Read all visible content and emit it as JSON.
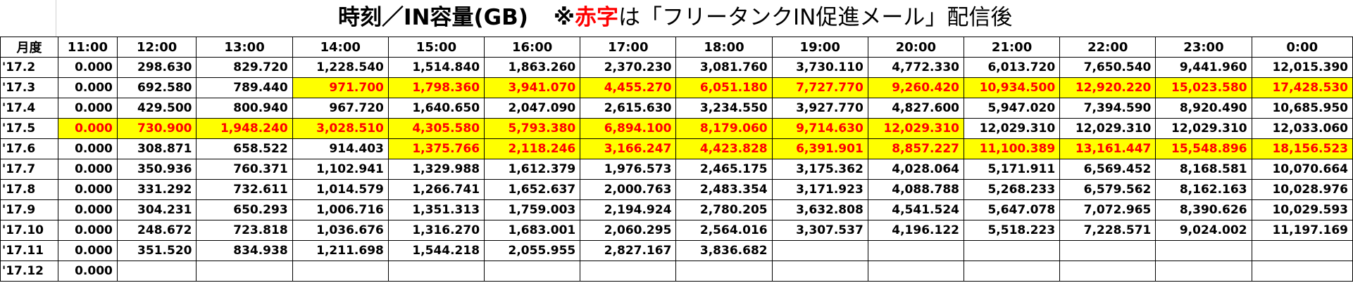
{
  "title": {
    "prefix": "時刻／IN容量(GB)",
    "mark": "※",
    "red": "赤字",
    "suffix": "は「フリータンクIN促進メール」配信後"
  },
  "colors": {
    "highlight_bg": "#ffff00",
    "highlight_text": "#ff0000"
  },
  "header": [
    "月度",
    "11:00",
    "12:00",
    "13:00",
    "14:00",
    "15:00",
    "16:00",
    "17:00",
    "18:00",
    "19:00",
    "20:00",
    "21:00",
    "22:00",
    "23:00",
    "0:00"
  ],
  "rows": [
    {
      "month": "'17.2",
      "values": [
        "0.000",
        "298.630",
        "829.720",
        "1,228.540",
        "1,514.840",
        "1,863.260",
        "2,370.230",
        "3,081.760",
        "3,730.110",
        "4,772.330",
        "6,013.720",
        "7,650.540",
        "9,441.960",
        "12,015.390"
      ],
      "hl_from": -1,
      "hl_to": -1
    },
    {
      "month": "'17.3",
      "values": [
        "0.000",
        "692.580",
        "789.440",
        "971.700",
        "1,798.360",
        "3,941.070",
        "4,455.270",
        "6,051.180",
        "7,727.770",
        "9,260.420",
        "10,934.500",
        "12,920.220",
        "15,023.580",
        "17,428.530"
      ],
      "hl_from": 3,
      "hl_to": 13
    },
    {
      "month": "'17.4",
      "values": [
        "0.000",
        "429.500",
        "800.940",
        "967.720",
        "1,640.650",
        "2,047.090",
        "2,615.630",
        "3,234.550",
        "3,927.770",
        "4,827.600",
        "5,947.020",
        "7,394.590",
        "8,920.490",
        "10,685.950"
      ],
      "hl_from": -1,
      "hl_to": -1
    },
    {
      "month": "'17.5",
      "values": [
        "0.000",
        "730.900",
        "1,948.240",
        "3,028.510",
        "4,305.580",
        "5,793.380",
        "6,894.100",
        "8,179.060",
        "9,714.630",
        "12,029.310",
        "12,029.310",
        "12,029.310",
        "12,029.310",
        "12,033.060"
      ],
      "hl_from": 0,
      "hl_to": 9
    },
    {
      "month": "'17.6",
      "values": [
        "0.000",
        "308.871",
        "658.522",
        "914.403",
        "1,375.766",
        "2,118.246",
        "3,166.247",
        "4,423.828",
        "6,391.901",
        "8,857.227",
        "11,100.389",
        "13,161.447",
        "15,548.896",
        "18,156.523"
      ],
      "hl_from": 4,
      "hl_to": 13
    },
    {
      "month": "'17.7",
      "values": [
        "0.000",
        "350.936",
        "760.371",
        "1,102.941",
        "1,329.988",
        "1,612.379",
        "1,976.573",
        "2,465.175",
        "3,175.362",
        "4,028.064",
        "5,171.911",
        "6,569.452",
        "8,168.581",
        "10,070.664"
      ],
      "hl_from": -1,
      "hl_to": -1
    },
    {
      "month": "'17.8",
      "values": [
        "0.000",
        "331.292",
        "732.611",
        "1,014.579",
        "1,266.741",
        "1,652.637",
        "2,000.763",
        "2,483.354",
        "3,171.923",
        "4,088.788",
        "5,268.233",
        "6,579.562",
        "8,162.163",
        "10,028.976"
      ],
      "hl_from": -1,
      "hl_to": -1
    },
    {
      "month": "'17.9",
      "values": [
        "0.000",
        "304.231",
        "650.293",
        "1,006.716",
        "1,351.313",
        "1,759.003",
        "2,194.924",
        "2,780.205",
        "3,632.808",
        "4,541.524",
        "5,647.078",
        "7,072.965",
        "8,390.626",
        "10,029.593"
      ],
      "hl_from": -1,
      "hl_to": -1
    },
    {
      "month": "'17.10",
      "values": [
        "0.000",
        "248.672",
        "723.818",
        "1,036.676",
        "1,316.270",
        "1,683.001",
        "2,060.295",
        "2,564.016",
        "3,307.537",
        "4,196.122",
        "5,518.223",
        "7,228.571",
        "9,024.002",
        "11,197.169"
      ],
      "hl_from": -1,
      "hl_to": -1
    },
    {
      "month": "'17.11",
      "values": [
        "0.000",
        "351.520",
        "834.938",
        "1,211.698",
        "1,544.218",
        "2,055.955",
        "2,827.167",
        "3,836.682",
        "",
        "",
        "",
        "",
        "",
        ""
      ],
      "hl_from": -1,
      "hl_to": -1
    },
    {
      "month": "'17.12",
      "values": [
        "0.000",
        "",
        "",
        "",
        "",
        "",
        "",
        "",
        "",
        "",
        "",
        "",
        "",
        ""
      ],
      "hl_from": -1,
      "hl_to": -1
    }
  ]
}
